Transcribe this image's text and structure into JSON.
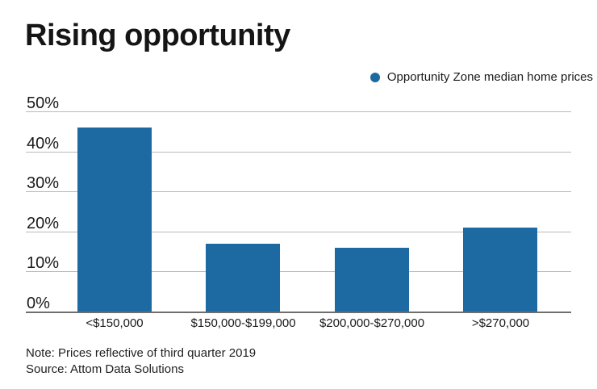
{
  "title": "Rising opportunity",
  "legend": {
    "label": "Opportunity Zone median home prices"
  },
  "chart_data": {
    "type": "bar",
    "title": "Rising opportunity",
    "series_name": "Opportunity Zone median home prices",
    "categories": [
      "<$150,000",
      "$150,000-$199,000",
      "$200,000-$270,000",
      ">$270,000"
    ],
    "values": [
      46,
      17,
      16,
      21
    ],
    "xlabel": "",
    "ylabel": "",
    "ylim": [
      0,
      50
    ],
    "ytick_labels": [
      "50%",
      "40%",
      "30%",
      "20%",
      "10%",
      "0%"
    ],
    "grid": true,
    "legend_position": "top-right"
  },
  "footer": {
    "note": "Note: Prices reflective of third quarter 2019",
    "source": "Source: Attom Data Solutions"
  },
  "colors": {
    "bar": "#1d6aa3",
    "gridline": "#b9b9b9",
    "baseline": "#6e6e6e",
    "text": "#1a1a1a"
  }
}
